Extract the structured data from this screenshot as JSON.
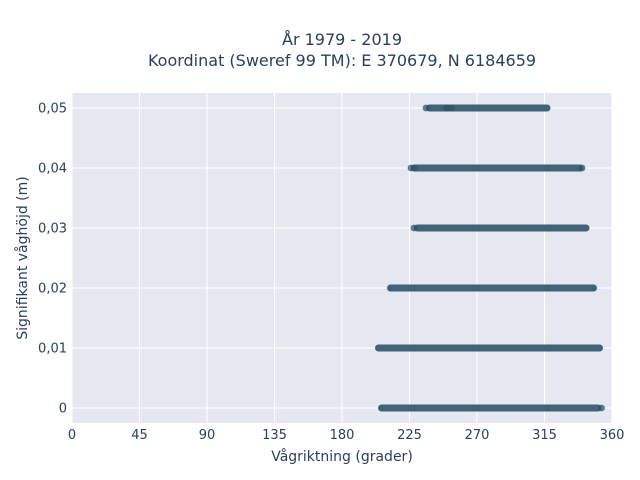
{
  "chart_data": {
    "type": "scatter",
    "title_lines": [
      "År 1979 - 2019",
      "Koordinat (Sweref 99 TM): E 370679, N 6184659"
    ],
    "xlabel": "Vågriktning (grader)",
    "ylabel": "Signifikant våghöjd (m)",
    "xlim": [
      0,
      360
    ],
    "ylim": [
      -0.0025,
      0.0525
    ],
    "x_ticks": [
      0,
      45,
      90,
      135,
      180,
      225,
      270,
      315,
      360
    ],
    "x_tick_labels": [
      "0",
      "45",
      "90",
      "135",
      "180",
      "225",
      "270",
      "315",
      "360"
    ],
    "y_ticks": [
      0,
      0.01,
      0.02,
      0.03,
      0.04,
      0.05
    ],
    "y_tick_labels": [
      "0",
      "0,01",
      "0,02",
      "0,03",
      "0,04",
      "0,05"
    ],
    "grid": true,
    "marker_color": "#2f5369",
    "background": "#e5e8f1",
    "bands": [
      {
        "y": 0.05,
        "x_min": 236,
        "x_max": 319,
        "isolated": [
          236,
          250,
          253
        ]
      },
      {
        "y": 0.04,
        "x_min": 226,
        "x_max": 341,
        "isolated": [
          226,
          228,
          340
        ]
      },
      {
        "y": 0.03,
        "x_min": 228,
        "x_max": 345,
        "isolated": [
          228
        ]
      },
      {
        "y": 0.02,
        "x_min": 210,
        "x_max": 350,
        "isolated": []
      },
      {
        "y": 0.01,
        "x_min": 202,
        "x_max": 354,
        "isolated": []
      },
      {
        "y": 0.0,
        "x_min": 204,
        "x_max": 353,
        "isolated": [
          353
        ]
      }
    ]
  }
}
